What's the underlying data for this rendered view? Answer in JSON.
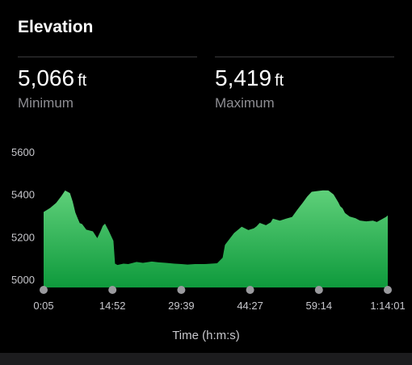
{
  "header": {
    "title": "Elevation"
  },
  "stats": {
    "minimum": {
      "value": "5,066",
      "unit": "ft",
      "label": "Minimum"
    },
    "maximum": {
      "value": "5,419",
      "unit": "ft",
      "label": "Maximum"
    }
  },
  "colors": {
    "fill_top": "#5fd07a",
    "fill_bottom": "#0e9a3c",
    "tick_text": "#c7c7cc",
    "marker": "#9a9a9e",
    "background": "#000000"
  },
  "chart_data": {
    "type": "area",
    "xlabel": "Time (h:m:s)",
    "ylabel": "",
    "ylim": [
      5000,
      5600
    ],
    "xlim": [
      5,
      4441
    ],
    "yticks": [
      5000,
      5200,
      5400,
      5600
    ],
    "ytick_labels": [
      "5000",
      "5200",
      "5400",
      "5600"
    ],
    "xticks": [
      5,
      892,
      1779,
      2667,
      3554,
      4441
    ],
    "xtick_labels": [
      "0:05",
      "14:52",
      "29:39",
      "44:27",
      "59:14",
      "1:14:01"
    ],
    "grid": false,
    "x": [
      5,
      89,
      166,
      234,
      282,
      344,
      380,
      414,
      444,
      470,
      502,
      555,
      640,
      696,
      738,
      768,
      796,
      842,
      875,
      905,
      926,
      957,
      981,
      1035,
      1096,
      1202,
      1285,
      1399,
      1489,
      1580,
      1691,
      1780,
      1861,
      1956,
      2078,
      2242,
      2313,
      2343,
      2459,
      2558,
      2644,
      2715,
      2750,
      2790,
      2871,
      2907,
      2932,
      2960,
      3050,
      3131,
      3208,
      3276,
      3343,
      3404,
      3460,
      3539,
      3605,
      3676,
      3742,
      3803,
      3829,
      3859,
      3889,
      3950,
      4026,
      4082,
      4163,
      4250,
      4300,
      4360,
      4418,
      4441
    ],
    "y": [
      5317,
      5336,
      5360,
      5392,
      5418,
      5406,
      5366,
      5314,
      5287,
      5265,
      5260,
      5234,
      5226,
      5194,
      5226,
      5252,
      5262,
      5230,
      5205,
      5181,
      5074,
      5068,
      5070,
      5074,
      5072,
      5082,
      5078,
      5084,
      5080,
      5078,
      5074,
      5072,
      5070,
      5072,
      5072,
      5076,
      5102,
      5162,
      5218,
      5248,
      5232,
      5240,
      5250,
      5266,
      5255,
      5263,
      5268,
      5286,
      5276,
      5286,
      5294,
      5328,
      5360,
      5390,
      5412,
      5416,
      5419,
      5418,
      5400,
      5363,
      5344,
      5334,
      5312,
      5296,
      5288,
      5277,
      5273,
      5276,
      5270,
      5282,
      5294,
      5301
    ]
  }
}
